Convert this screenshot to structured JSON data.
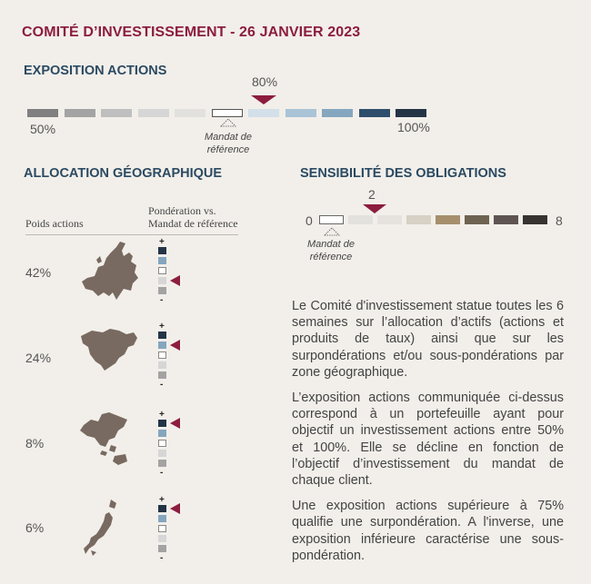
{
  "title": "COMITÉ D’INVESTISSEMENT - 26 JANVIER 2023",
  "exposure": {
    "heading": "EXPOSITION ACTIONS",
    "min_label": "50%",
    "max_label": "100%",
    "current_label": "80%",
    "reference_label_line1": "Mandat de",
    "reference_label_line2": "référence",
    "segment_colors": [
      "#808080",
      "#a3a3a3",
      "#bfbfbf",
      "#d6d6d6",
      "#e3e1de",
      "#ffffff",
      "#d3dfe9",
      "#a9c3d7",
      "#85a6bf",
      "#2f4e6c",
      "#243447"
    ],
    "reference_index": 5,
    "current_index": 6
  },
  "allocation": {
    "heading": "ALLOCATION GÉOGRAPHIQUE",
    "col_weight": "Poids actions",
    "col_ponderation_line1": "Pondération vs.",
    "col_ponderation_line2": "Mandat de référence",
    "scale_colors": [
      "#243447",
      "#85a6bf",
      "#ffffff",
      "#d6d6d6",
      "#a3a3a3"
    ],
    "plus": "+",
    "minus": "-",
    "regions": [
      {
        "name": "europe-map",
        "weight": "42%",
        "level_index": 3
      },
      {
        "name": "north-america-map",
        "weight": "24%",
        "level_index": 1
      },
      {
        "name": "asia-map",
        "weight": "8%",
        "level_index": 0
      },
      {
        "name": "japan-map",
        "weight": "6%",
        "level_index": 0
      }
    ]
  },
  "bonds": {
    "heading": "SENSIBILITÉ DES OBLIGATIONS",
    "min_label": "0",
    "max_label": "8",
    "current_label": "2",
    "reference_label_line1": "Mandat de",
    "reference_label_line2": "référence",
    "segment_colors": [
      "#ffffff",
      "#e3e1de",
      "#e6e3de",
      "#d6d0c5",
      "#a68f6d",
      "#6e6351",
      "#5e5553",
      "#363330"
    ],
    "reference_index": 0,
    "current_index": 2
  },
  "paragraphs": [
    "Le Comité d'investissement statue toutes les 6 semaines sur l’allocation d’actifs (actions et produits de taux) ainsi que sur les surpondérations et/ou sous-pondérations par zone géographique.",
    "L’exposition actions communiquée ci-dessus correspond à un portefeuille ayant pour objectif un investissement actions entre 50% et 100%. Elle se décline en fonction de l’objectif d’investissement du mandat de chaque client.",
    "Une exposition actions supérieure à 75% qualifie une surpondération. A l'inverse, une exposition inférieure caractérise une sous-pondération."
  ],
  "colors": {
    "accent": "#8c1d3f",
    "heading": "#2b4a62"
  }
}
